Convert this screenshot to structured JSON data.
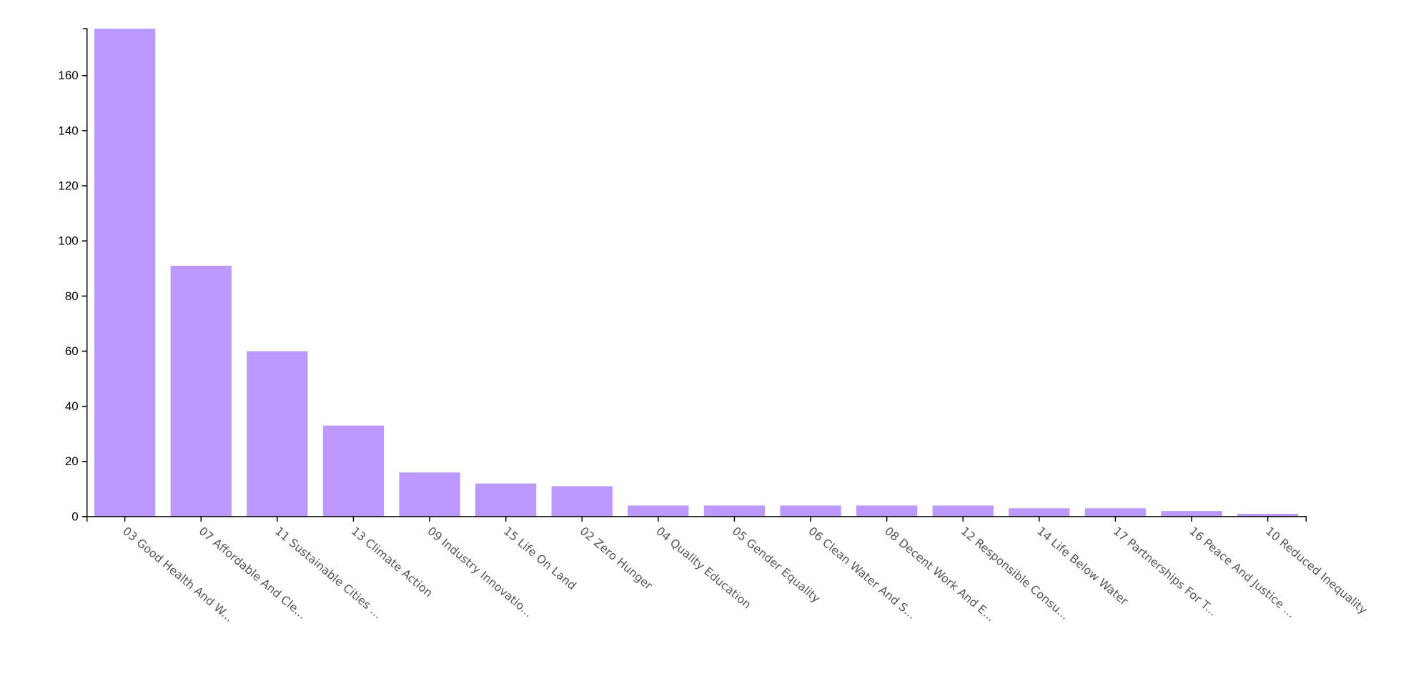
{
  "chart_data": {
    "type": "bar",
    "title": "",
    "xlabel": "",
    "ylabel": "",
    "ylim": [
      0,
      177
    ],
    "yticks": [
      0,
      20,
      40,
      60,
      80,
      100,
      120,
      140,
      160
    ],
    "grid": false,
    "bar_color": "#bb99ff",
    "categories": [
      "03 Good Health And W...",
      "07 Affordable And Cle...",
      "11 Sustainable Cities ...",
      "13 Climate Action",
      "09 Industry Innovatio...",
      "15 Life On Land",
      "02 Zero Hunger",
      "04 Quality Education",
      "05 Gender Equality",
      "06 Clean Water And S...",
      "08 Decent Work And E...",
      "12 Responsible Consu...",
      "14 Life Below Water",
      "17 Partnerships For T...",
      "16 Peace And Justice ...",
      "10 Reduced Inequality"
    ],
    "values": [
      177,
      91,
      60,
      33,
      16,
      12,
      11,
      4,
      4,
      4,
      4,
      4,
      3,
      3,
      2,
      1
    ]
  }
}
